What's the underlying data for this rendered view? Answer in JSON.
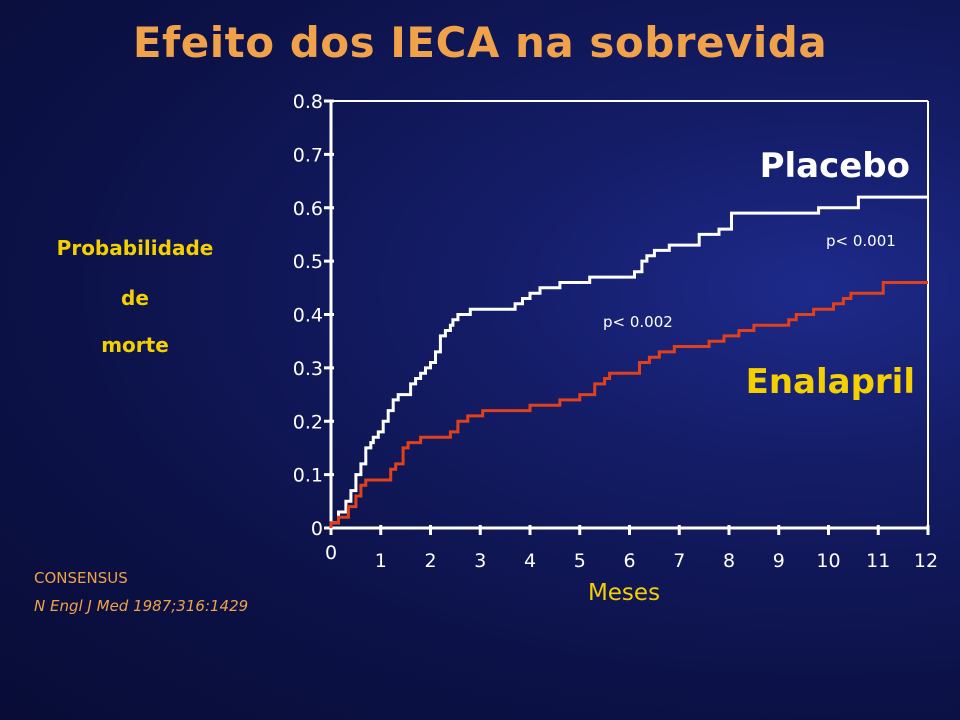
{
  "title": "Efeito dos IECA na sobrevida",
  "ylabel_lines": [
    "Probabilidade",
    "de",
    "morte"
  ],
  "source": [
    "CONSENSUS",
    "N Engl J Med 1987;316:1429"
  ],
  "colors": {
    "title": "#f0a24a",
    "ylabel": "#f5d000",
    "placebo": "#ffffff",
    "enalapril": "#e0401a",
    "enalapril_label": "#f5d000",
    "source": "#f0a24a"
  },
  "chart_data": {
    "type": "line",
    "title": "",
    "xlabel": "Meses",
    "ylabel": "Probabilidade de morte",
    "xlim": [
      0,
      12
    ],
    "ylim": [
      0,
      0.8
    ],
    "x_ticks": [
      0,
      1,
      2,
      3,
      4,
      5,
      6,
      7,
      8,
      9,
      10,
      11,
      12
    ],
    "x_tick_labels": [
      "0",
      "1",
      "2",
      "3",
      "4",
      "5",
      "6",
      "7",
      "8",
      "9",
      "10",
      "11",
      "12"
    ],
    "y_ticks": [
      0,
      0.1,
      0.2,
      0.3,
      0.4,
      0.5,
      0.6,
      0.7,
      0.8
    ],
    "y_tick_labels": [
      "0",
      "0.1",
      "0.2",
      "0.3",
      "0.4",
      "0.5",
      "0.6",
      "0.7",
      "0.8"
    ],
    "grid": false,
    "series": [
      {
        "name": "Placebo",
        "step": true,
        "x": [
          0,
          0.15,
          0.3,
          0.4,
          0.5,
          0.6,
          0.7,
          0.8,
          0.85,
          0.95,
          1.05,
          1.15,
          1.25,
          1.35,
          1.45,
          1.6,
          1.7,
          1.8,
          1.9,
          2.0,
          2.1,
          2.2,
          2.3,
          2.4,
          2.45,
          2.55,
          2.65,
          2.8,
          3.4,
          3.7,
          3.85,
          4.0,
          4.2,
          4.6,
          5.2,
          6.1,
          6.25,
          6.35,
          6.5,
          6.8,
          7.4,
          7.8,
          8.05,
          9.8,
          10.6,
          12.0
        ],
        "y": [
          0.01,
          0.03,
          0.05,
          0.07,
          0.1,
          0.12,
          0.15,
          0.16,
          0.17,
          0.18,
          0.2,
          0.22,
          0.24,
          0.25,
          0.25,
          0.27,
          0.28,
          0.29,
          0.3,
          0.31,
          0.33,
          0.36,
          0.37,
          0.38,
          0.39,
          0.4,
          0.4,
          0.41,
          0.41,
          0.42,
          0.43,
          0.44,
          0.45,
          0.46,
          0.47,
          0.48,
          0.5,
          0.51,
          0.52,
          0.53,
          0.55,
          0.56,
          0.59,
          0.6,
          0.62,
          0.62
        ]
      },
      {
        "name": "Enalapril",
        "step": true,
        "x": [
          0,
          0.15,
          0.35,
          0.5,
          0.6,
          0.7,
          1.2,
          1.3,
          1.45,
          1.55,
          1.8,
          2.4,
          2.55,
          2.75,
          3.05,
          4.0,
          4.6,
          5.0,
          5.3,
          5.5,
          5.6,
          6.2,
          6.4,
          6.6,
          6.9,
          7.6,
          7.9,
          8.2,
          8.5,
          9.2,
          9.35,
          9.7,
          10.1,
          10.3,
          10.45,
          11.1,
          12.0
        ],
        "y": [
          0.01,
          0.02,
          0.04,
          0.06,
          0.08,
          0.09,
          0.11,
          0.12,
          0.15,
          0.16,
          0.17,
          0.18,
          0.2,
          0.21,
          0.22,
          0.23,
          0.24,
          0.25,
          0.27,
          0.28,
          0.29,
          0.31,
          0.32,
          0.33,
          0.34,
          0.35,
          0.36,
          0.37,
          0.38,
          0.39,
          0.4,
          0.41,
          0.42,
          0.43,
          0.44,
          0.46,
          0.46
        ]
      }
    ],
    "annotations": [
      "p< 0.001",
      "p< 0.002"
    ]
  }
}
